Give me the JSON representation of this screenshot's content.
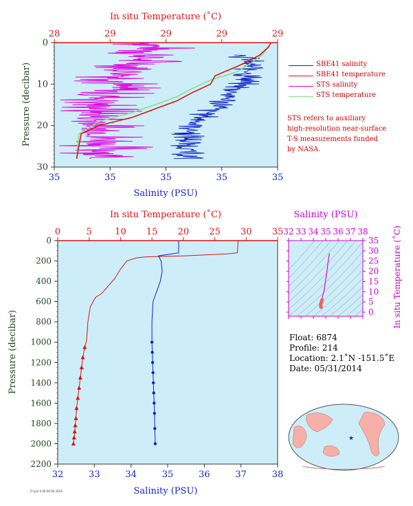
{
  "colors": {
    "temperature": "#dd1111",
    "salinity": "#1122cc",
    "sts_salinity": "#e000e0",
    "sts_temperature": "#88dd88",
    "axis_left_label": "#224422",
    "panel_bg": "#cdeef8",
    "inset_axis": "#cc00cc"
  },
  "top_chart": {
    "xlabel_top": "In situ Temperature (˚C)",
    "xlabel_bottom": "Salinity (PSU)",
    "ylabel": "Pressure (decibar)",
    "temp_ticks": [
      "28",
      "29",
      "29",
      "29",
      "29"
    ],
    "sal_ticks": [
      "35",
      "35",
      "35",
      "35",
      "35"
    ],
    "pressure_ticks": [
      "0",
      "10",
      "20",
      "30"
    ]
  },
  "legend": [
    {
      "label": "SBE41 salinity",
      "color": "#1122cc"
    },
    {
      "label": "SBE41 temperature",
      "color": "#dd1111"
    },
    {
      "label": "STS salinity",
      "color": "#e000e0"
    },
    {
      "label": "STS temperature",
      "color": "#88dd88"
    }
  ],
  "note": {
    "lines": [
      "STS refers to auxiliary",
      "high-resolution near-surface",
      "T-S measurements funded",
      "by NASA."
    ]
  },
  "bottom_chart": {
    "xlabel_top": "In situ Temperature (˚C)",
    "xlabel_bottom": "Salinity (PSU)",
    "ylabel": "Pressure (decibar)",
    "temp_ticks": [
      "0",
      "5",
      "10",
      "15",
      "20",
      "25",
      "30",
      "35"
    ],
    "sal_ticks": [
      "32",
      "33",
      "34",
      "35",
      "36",
      "37",
      "38"
    ],
    "pressure_ticks": [
      "0",
      "200",
      "400",
      "600",
      "800",
      "1000",
      "1200",
      "1400",
      "1600",
      "1800",
      "2000",
      "2200"
    ]
  },
  "ts_inset": {
    "xlabel": "Salinity (PSU)",
    "ylabel": "In situ Temperature (˚C)",
    "sal_ticks": [
      "32",
      "33",
      "34",
      "35",
      "36",
      "37",
      "38"
    ],
    "temp_ticks": [
      "35",
      "30",
      "25",
      "20",
      "15",
      "10",
      "5",
      "0"
    ]
  },
  "float_info": {
    "float": "Float:  6874",
    "profile": "Profile:  214",
    "location": "Location:  2.1˚N  -151.5˚E",
    "date": "Date:  05/31/2014"
  },
  "footer_stamp": "Fri Jun 6 00:00:00 2014",
  "chart_data": [
    {
      "type": "line",
      "title": "",
      "xlabel": "Salinity (PSU)",
      "x2label": "In situ Temperature (˚C)",
      "ylabel": "Pressure (decibar)",
      "ylim": [
        30,
        0
      ],
      "series": [
        {
          "name": "SBE41 temperature",
          "axis": "temperature_relative",
          "x": [
            0.97,
            0.96,
            0.92,
            0.85,
            0.72,
            0.7,
            0.62,
            0.55,
            0.45,
            0.35,
            0.2,
            0.12,
            0.1
          ],
          "y": [
            0,
            1,
            3,
            5,
            8,
            10,
            12,
            14,
            16,
            18,
            20,
            22,
            28
          ]
        },
        {
          "name": "SBE41 salinity",
          "axis": "salinity_relative",
          "x": [
            0.85,
            0.88,
            0.86,
            0.8,
            0.74,
            0.66,
            0.6,
            0.6
          ],
          "y": [
            3,
            6,
            9,
            12,
            15,
            18,
            22,
            28
          ]
        },
        {
          "name": "STS temperature",
          "axis": "temperature_relative",
          "x": [
            0.96,
            0.93,
            0.88,
            0.82,
            0.7,
            0.62,
            0.55,
            0.45,
            0.34,
            0.2,
            0.11,
            0.1
          ],
          "y": [
            1,
            3,
            5,
            7,
            9,
            11,
            13,
            15,
            17,
            19,
            22,
            28
          ]
        },
        {
          "name": "STS salinity",
          "axis": "salinity_relative",
          "x": [
            0.45,
            0.42,
            0.35,
            0.3,
            0.25,
            0.2,
            0.18,
            0.22,
            0.25
          ],
          "y": [
            0,
            3,
            6,
            9,
            12,
            15,
            18,
            22,
            28
          ]
        }
      ]
    },
    {
      "type": "line",
      "title": "",
      "xlabel": "Salinity (PSU)",
      "x2label": "In situ Temperature (˚C)",
      "ylabel": "Pressure (decibar)",
      "ylim": [
        2200,
        0
      ],
      "xlim_salinity": [
        32,
        38
      ],
      "xlim_temperature": [
        0,
        35
      ],
      "series": [
        {
          "name": "SBE41 temperature",
          "axis": "temperature",
          "x": [
            28.7,
            28.6,
            27,
            20,
            14,
            12.5,
            11,
            10,
            9,
            8,
            7,
            6,
            5.2,
            4.8,
            4.6,
            4.3,
            4.0,
            3.8,
            3.6,
            3.4,
            3.2,
            3.0,
            2.9,
            2.8,
            2.7,
            2.6,
            2.5
          ],
          "y": [
            0,
            120,
            130,
            150,
            160,
            170,
            200,
            280,
            380,
            450,
            520,
            560,
            650,
            800,
            980,
            1050,
            1150,
            1250,
            1350,
            1450,
            1550,
            1650,
            1750,
            1820,
            1880,
            1940,
            2000
          ]
        },
        {
          "name": "SBE41 salinity",
          "axis": "salinity",
          "x": [
            35.3,
            35.3,
            34.75,
            34.82,
            34.85,
            34.8,
            34.7,
            34.6,
            34.57,
            34.57,
            34.58,
            34.59,
            34.6,
            34.61,
            34.62,
            34.63,
            34.64,
            34.65,
            34.66
          ],
          "y": [
            0,
            120,
            150,
            200,
            300,
            400,
            500,
            600,
            800,
            1000,
            1100,
            1200,
            1300,
            1400,
            1500,
            1600,
            1700,
            1850,
            2000
          ]
        }
      ]
    },
    {
      "type": "scatter",
      "title": "",
      "xlabel": "Salinity (PSU)",
      "ylabel": "In situ Temperature (˚C)",
      "xlim": [
        32,
        38
      ],
      "ylim": [
        -2,
        35
      ],
      "series": [
        {
          "name": "",
          "x": [
            35.3,
            35.2,
            35.1,
            35.0,
            34.95,
            34.9,
            34.85,
            34.8,
            34.75,
            34.7,
            34.65,
            34.6,
            34.6,
            34.62
          ],
          "y": [
            28.7,
            25,
            20,
            16,
            14,
            12,
            10,
            9,
            8,
            6,
            5,
            4,
            3,
            2.5
          ]
        }
      ]
    }
  ]
}
